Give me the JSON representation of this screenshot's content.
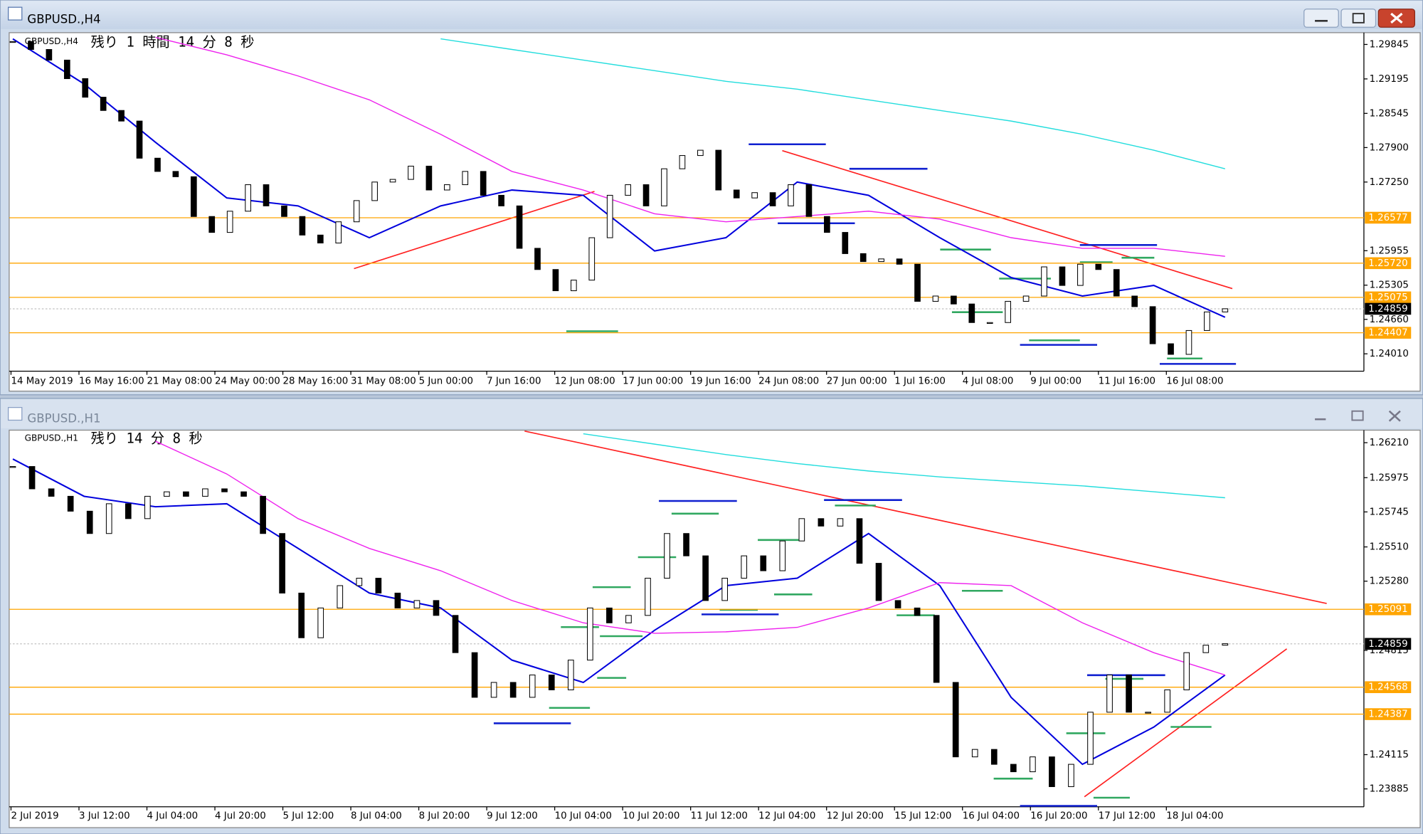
{
  "windows": [
    {
      "title": "GBPUSD.,H4",
      "symbol_label": "GBPUSD.,H4",
      "countdown": "残り 1 時間 14 分 8 秒",
      "chart": {
        "type": "candlestick",
        "close": [
          1.299,
          1.2975,
          1.2955,
          1.292,
          1.2885,
          1.286,
          1.284,
          1.277,
          1.2745,
          1.2735,
          1.266,
          1.263,
          1.267,
          1.272,
          1.268,
          1.266,
          1.2625,
          1.261,
          1.265,
          1.269,
          1.2725,
          1.273,
          1.2755,
          1.271,
          1.272,
          1.2745,
          1.27,
          1.268,
          1.26,
          1.256,
          1.252,
          1.254,
          1.262,
          1.27,
          1.272,
          1.268,
          1.275,
          1.2775,
          1.2785,
          1.271,
          1.2695,
          1.2705,
          1.268,
          1.272,
          1.266,
          1.263,
          1.259,
          1.2575,
          1.258,
          1.257,
          1.25,
          1.251,
          1.2495,
          1.246,
          1.246,
          1.25,
          1.251,
          1.2565,
          1.253,
          1.257,
          1.256,
          1.251,
          1.249,
          1.242,
          1.24,
          1.2445,
          1.248,
          1.2486
        ],
        "ylim": [
          1.237,
          1.3005
        ],
        "yticks": [
          1.29845,
          1.29195,
          1.28545,
          {
            "value": 1.279,
            "label": "1.27900"
          },
          {
            "value": 1.2725,
            "label": "1.27250"
          },
          1.25955,
          1.25305,
          {
            "value": 1.2466,
            "label": "1.24660"
          },
          {
            "value": 1.2401,
            "label": "1.24010"
          }
        ],
        "xlabels": [
          "14 May 2019",
          "16 May 16:00",
          "21 May 08:00",
          "24 May 00:00",
          "28 May 16:00",
          "31 May 08:00",
          "5 Jun 00:00",
          "7 Jun 16:00",
          "12 Jun 08:00",
          "17 Jun 00:00",
          "19 Jun 16:00",
          "24 Jun 08:00",
          "27 Jun 00:00",
          "1 Jul 16:00",
          "4 Jul 08:00",
          "9 Jul 00:00",
          "11 Jul 16:00",
          "16 Jul 08:00"
        ],
        "levels": [
          1.26577,
          {
            "value": 1.2572,
            "label": "1.25720"
          },
          1.25075,
          1.24407
        ],
        "current": 1.24859,
        "ma": [
          {
            "color": "#0000dd",
            "values": [
              1.2995,
              1.291,
              1.28,
              1.2695,
              1.268,
              1.262,
              1.268,
              1.271,
              1.27,
              1.2595,
              1.262,
              1.2725,
              1.27,
              1.262,
              1.2545,
              1.251,
              1.253,
              1.247
            ]
          },
          {
            "color": "#ee22ee",
            "values": [
              null,
              null,
              1.2998,
              1.2965,
              1.2925,
              1.288,
              1.2815,
              1.2745,
              1.271,
              1.2665,
              1.265,
              1.266,
              1.267,
              1.2655,
              1.262,
              1.26,
              1.26,
              1.2585
            ]
          },
          {
            "color": "#22dddd",
            "values": [
              null,
              null,
              null,
              null,
              null,
              null,
              1.2995,
              1.2975,
              1.2955,
              1.2935,
              1.2915,
              1.29,
              1.288,
              1.286,
              1.284,
              1.2815,
              1.2785,
              1.275
            ]
          }
        ]
      }
    },
    {
      "title": "GBPUSD.,H1",
      "symbol_label": "GBPUSD.,H1",
      "countdown": "残り 14 分 8 秒",
      "chart": {
        "type": "candlestick",
        "close": [
          1.2605,
          1.259,
          1.2585,
          1.2575,
          1.256,
          1.258,
          1.257,
          1.2585,
          1.2588,
          1.2585,
          1.259,
          1.2588,
          1.2585,
          1.256,
          1.252,
          1.249,
          1.251,
          1.2525,
          1.253,
          1.252,
          1.251,
          1.2515,
          1.2505,
          1.248,
          1.245,
          1.246,
          1.245,
          1.2465,
          1.2455,
          1.2475,
          1.251,
          1.25,
          1.2505,
          1.253,
          1.256,
          1.2545,
          1.2515,
          1.253,
          1.2545,
          1.2535,
          1.2555,
          1.257,
          1.2565,
          1.257,
          1.254,
          1.2515,
          1.251,
          1.2505,
          1.246,
          1.241,
          1.2415,
          1.2405,
          1.24,
          1.241,
          1.239,
          1.2405,
          1.244,
          1.2465,
          1.244,
          1.244,
          1.2455,
          1.248,
          1.2485,
          1.2486
        ],
        "ylim": [
          1.23771,
          1.26288
        ],
        "yticks": [
          {
            "value": 1.2621,
            "label": "1.26210"
          },
          1.25975,
          1.25745,
          {
            "value": 1.2551,
            "label": "1.25510"
          },
          {
            "value": 1.2528,
            "label": "1.25280"
          },
          1.24815,
          1.24115,
          1.23885
        ],
        "xlabels": [
          "2 Jul 2019",
          "3 Jul 12:00",
          "4 Jul 04:00",
          "4 Jul 20:00",
          "5 Jul 12:00",
          "8 Jul 04:00",
          "8 Jul 20:00",
          "9 Jul 12:00",
          "10 Jul 04:00",
          "10 Jul 20:00",
          "11 Jul 12:00",
          "12 Jul 04:00",
          "12 Jul 20:00",
          "15 Jul 12:00",
          "16 Jul 04:00",
          "16 Jul 20:00",
          "17 Jul 12:00",
          "18 Jul 04:00"
        ],
        "levels": [
          1.25091,
          1.24568,
          1.24387
        ],
        "current": 1.24859,
        "ma": [
          {
            "color": "#0000dd",
            "values": [
              1.261,
              1.2585,
              1.2578,
              1.258,
              1.255,
              1.252,
              1.251,
              1.2475,
              1.246,
              1.2495,
              1.2525,
              1.253,
              1.256,
              1.2525,
              1.245,
              1.2405,
              1.243,
              1.2465
            ]
          },
          {
            "color": "#ee22ee",
            "values": [
              null,
              null,
              1.2622,
              1.26,
              1.257,
              1.255,
              1.2535,
              1.2515,
              1.25,
              1.2493,
              1.2494,
              1.2497,
              1.251,
              1.2527,
              1.2525,
              1.25,
              1.248,
              1.2465
            ]
          },
          {
            "color": "#22dddd",
            "values": [
              null,
              null,
              null,
              null,
              null,
              null,
              null,
              null,
              1.2627,
              1.262,
              1.2613,
              1.2607,
              1.2602,
              1.2598,
              1.2595,
              1.2592,
              1.2588,
              1.2584
            ]
          }
        ]
      }
    }
  ]
}
